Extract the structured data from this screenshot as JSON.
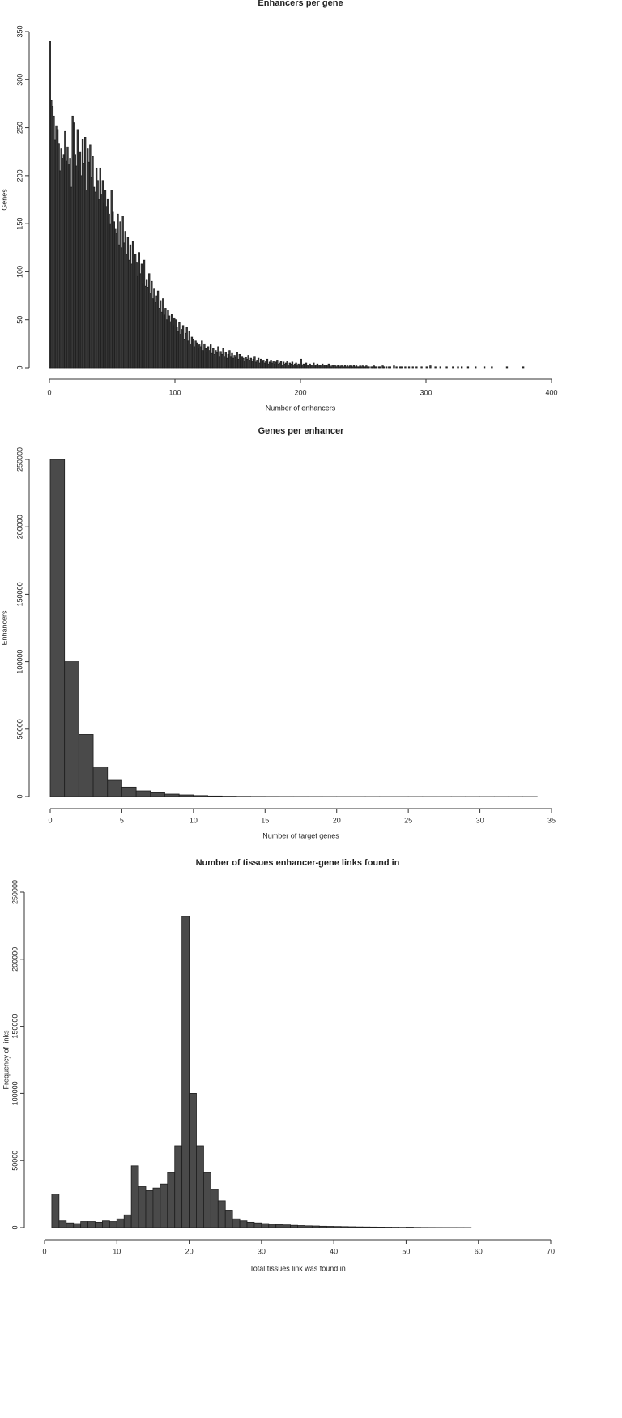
{
  "chart_data": [
    {
      "type": "histogram",
      "title": "Enhancers per gene",
      "x_label": "Number of enhancers",
      "y_label": "Genes",
      "color": "#444444",
      "bins": [
        0,
        1,
        2,
        3,
        4,
        5,
        6,
        7,
        8,
        9,
        10,
        11,
        12,
        13,
        14,
        15,
        16,
        17,
        18,
        19,
        20,
        21,
        22,
        23,
        24,
        25,
        26,
        27,
        28,
        29,
        30,
        31,
        32,
        33,
        34,
        35,
        36,
        37,
        38,
        39,
        40,
        41,
        42,
        43,
        44,
        45,
        46,
        47,
        48,
        49,
        50,
        51,
        52,
        53,
        54,
        55,
        56,
        57,
        58,
        59,
        60,
        61,
        62,
        63,
        64,
        65,
        66,
        67,
        68,
        69,
        70,
        71,
        72,
        73,
        74,
        75,
        76,
        77,
        78,
        79,
        80,
        81,
        82,
        83,
        84,
        85,
        86,
        87,
        88,
        89,
        90,
        91,
        92,
        93,
        94,
        95,
        96,
        97,
        98,
        99,
        100,
        101,
        102,
        103,
        104,
        105,
        106,
        107,
        108,
        109,
        110,
        111,
        112,
        113,
        114,
        115,
        116,
        117,
        118,
        119,
        120,
        121,
        122,
        123,
        124,
        125,
        126,
        127,
        128,
        129,
        130,
        131,
        132,
        133,
        134,
        135,
        136,
        137,
        138,
        139,
        140,
        141,
        142,
        143,
        144,
        145,
        146,
        147,
        148,
        149,
        150,
        151,
        152,
        153,
        154,
        155,
        156,
        157,
        158,
        159,
        160,
        161,
        162,
        163,
        164,
        165,
        166,
        167,
        168,
        169,
        170,
        171,
        172,
        173,
        174,
        175,
        176,
        177,
        178,
        179,
        180,
        181,
        182,
        183,
        184,
        185,
        186,
        187,
        188,
        189,
        190,
        191,
        192,
        193,
        194,
        195,
        196,
        197,
        198,
        199,
        200,
        201,
        202,
        203,
        204,
        205,
        206,
        207,
        208,
        209,
        210,
        211,
        212,
        213,
        214,
        215,
        216,
        217,
        218,
        219,
        220,
        221,
        222,
        223,
        224,
        225,
        226,
        227,
        228,
        229,
        230,
        231,
        232,
        233,
        234,
        235,
        236,
        237,
        238,
        239,
        240,
        241,
        242,
        243,
        244,
        245,
        246,
        247,
        248,
        249,
        250,
        251,
        252,
        253,
        254,
        255,
        256,
        257,
        258,
        259,
        260,
        261,
        262,
        263,
        264,
        265,
        266,
        267,
        268,
        269,
        270,
        271,
        272,
        273,
        274,
        275,
        276,
        277,
        278,
        279,
        280,
        281,
        282,
        283,
        284,
        285,
        286,
        287,
        288,
        289,
        290,
        291,
        292,
        293,
        294,
        295,
        296,
        297,
        298,
        299,
        300,
        301,
        302,
        303,
        304,
        305,
        306,
        307,
        308,
        309,
        310,
        311,
        312,
        313,
        314,
        315,
        316,
        317,
        318,
        319,
        320,
        321,
        322,
        323,
        324,
        325,
        326,
        327,
        328,
        329,
        330,
        331,
        332,
        333,
        334,
        335,
        336,
        337,
        338,
        339,
        340,
        341,
        342,
        343,
        344,
        345,
        346,
        347,
        348,
        349,
        350,
        351,
        352,
        353,
        354,
        355,
        356,
        357,
        358,
        359,
        360,
        361,
        362,
        363,
        364,
        365,
        366,
        367,
        368,
        369,
        370,
        371,
        372,
        373,
        374,
        375,
        376,
        377,
        378,
        379,
        380
      ],
      "values": [
        340,
        278,
        272,
        262,
        237,
        252,
        248,
        233,
        205,
        228,
        218,
        222,
        246,
        215,
        230,
        212,
        218,
        188,
        262,
        255,
        222,
        210,
        248,
        205,
        225,
        200,
        238,
        213,
        240,
        185,
        228,
        214,
        232,
        198,
        220,
        188,
        183,
        208,
        195,
        175,
        208,
        180,
        195,
        172,
        185,
        168,
        176,
        160,
        150,
        185,
        162,
        152,
        145,
        140,
        160,
        128,
        152,
        125,
        158,
        130,
        142,
        118,
        136,
        112,
        128,
        108,
        132,
        102,
        118,
        110,
        95,
        120,
        98,
        108,
        88,
        112,
        85,
        92,
        84,
        98,
        78,
        90,
        72,
        82,
        68,
        75,
        80,
        62,
        70,
        58,
        72,
        55,
        62,
        50,
        60,
        54,
        48,
        56,
        44,
        52,
        50,
        42,
        38,
        47,
        35,
        40,
        44,
        30,
        36,
        42,
        28,
        38,
        25,
        32,
        30,
        22,
        28,
        26,
        20,
        24,
        22,
        28,
        18,
        25,
        20,
        16,
        22,
        18,
        24,
        15,
        20,
        14,
        18,
        16,
        22,
        12,
        17,
        14,
        20,
        12,
        16,
        10,
        14,
        18,
        12,
        15,
        10,
        13,
        11,
        16,
        9,
        14,
        8,
        12,
        10,
        7,
        11,
        9,
        13,
        8,
        10,
        7,
        9,
        12,
        6,
        8,
        10,
        5,
        9,
        7,
        8,
        5,
        7,
        9,
        4,
        6,
        8,
        5,
        7,
        4,
        6,
        8,
        4,
        5,
        7,
        3,
        6,
        4,
        5,
        7,
        3,
        5,
        4,
        6,
        3,
        4,
        5,
        2,
        4,
        3,
        9,
        3,
        4,
        2,
        5,
        3,
        2,
        4,
        3,
        2,
        5,
        2,
        3,
        4,
        2,
        3,
        2,
        4,
        2,
        3,
        3,
        2,
        4,
        2,
        1,
        3,
        2,
        3,
        1,
        2,
        3,
        1,
        2,
        2,
        1,
        3,
        1,
        2,
        1,
        2,
        2,
        1,
        3,
        1,
        2,
        1,
        1,
        2,
        1,
        2,
        1,
        1,
        2,
        1,
        1,
        0,
        1,
        1,
        2,
        1,
        1,
        0,
        1,
        1,
        0,
        2,
        1,
        0,
        1,
        0,
        1,
        1,
        0,
        0,
        2,
        0,
        1,
        0,
        0,
        1,
        1,
        0,
        0,
        1,
        0,
        0,
        1,
        0,
        0,
        1,
        0,
        0,
        1,
        0,
        0,
        0,
        1,
        0,
        0,
        0,
        1,
        0,
        0,
        2,
        0,
        0,
        0,
        1,
        0,
        0,
        0,
        1,
        0,
        0,
        0,
        0,
        1,
        0,
        0,
        0,
        0,
        1,
        0,
        0,
        0,
        1,
        0,
        0,
        1,
        0,
        0,
        0,
        0,
        1,
        0,
        0,
        0,
        0,
        0,
        1,
        0,
        0,
        0,
        0,
        0,
        0,
        1,
        0,
        0,
        0,
        0,
        0,
        1,
        0,
        0,
        0,
        0,
        0,
        0,
        0,
        0,
        0,
        0,
        0,
        1,
        0,
        0,
        0,
        0,
        0,
        0,
        0,
        0,
        0,
        0,
        0,
        0,
        1,
        0,
        0
      ],
      "xlim": [
        0,
        400
      ],
      "xticks": [
        0,
        100,
        200,
        300,
        400
      ],
      "ylim": [
        0,
        350
      ],
      "yticks": [
        0,
        50,
        100,
        150,
        200,
        250,
        300,
        350
      ]
    },
    {
      "type": "histogram",
      "title": "Genes per enhancer",
      "x_label": "Number of target genes",
      "y_label": "Enhancers",
      "color": "#4a4a4a",
      "bins": [
        0,
        1,
        2,
        3,
        4,
        5,
        6,
        7,
        8,
        9,
        10,
        11,
        12,
        13,
        14,
        15,
        16,
        17,
        18,
        19,
        20,
        21,
        22,
        23,
        24,
        25,
        26,
        27,
        28,
        29,
        30,
        31,
        32,
        33,
        34
      ],
      "values": [
        250000,
        100000,
        46000,
        22000,
        12000,
        7000,
        4200,
        2800,
        1800,
        1200,
        700,
        400,
        250,
        150,
        100,
        70,
        50,
        40,
        30,
        20,
        15,
        10,
        8,
        6,
        5,
        4,
        3,
        2,
        2,
        1,
        1,
        1,
        1,
        1
      ],
      "xlim": [
        0,
        35
      ],
      "xticks": [
        0,
        5,
        10,
        15,
        20,
        25,
        30,
        35
      ],
      "ylim": [
        0,
        250000
      ],
      "yticks": [
        0,
        50000,
        100000,
        150000,
        200000,
        250000
      ]
    },
    {
      "type": "histogram",
      "title": "Number of tissues enhancer-gene links found in",
      "x_label": "Total tissues link was found in",
      "y_label": "Frequency of links",
      "color": "#4a4a4a",
      "bins": [
        1,
        2,
        3,
        4,
        5,
        6,
        7,
        8,
        9,
        10,
        11,
        12,
        13,
        14,
        15,
        16,
        17,
        18,
        19,
        20,
        21,
        22,
        23,
        24,
        25,
        26,
        27,
        28,
        29,
        30,
        31,
        32,
        33,
        34,
        35,
        36,
        37,
        38,
        39,
        40,
        41,
        42,
        43,
        44,
        45,
        46,
        47,
        48,
        49,
        50,
        51,
        52,
        53,
        54,
        55,
        56,
        57,
        58,
        59
      ],
      "values": [
        25000,
        5000,
        3500,
        3000,
        4500,
        4500,
        4000,
        5000,
        4500,
        6500,
        9500,
        46000,
        30500,
        27500,
        29500,
        32500,
        41000,
        61000,
        232000,
        100000,
        61000,
        41000,
        28500,
        20000,
        13000,
        6500,
        5000,
        4000,
        3500,
        3000,
        2500,
        2300,
        2000,
        1700,
        1500,
        1300,
        1200,
        1000,
        900,
        800,
        700,
        600,
        500,
        450,
        400,
        350,
        300,
        250,
        200,
        300,
        150,
        100,
        80,
        60,
        50,
        40,
        30,
        20
      ],
      "xlim": [
        0,
        70
      ],
      "xticks": [
        0,
        10,
        20,
        30,
        40,
        50,
        60,
        70
      ],
      "ylim": [
        0,
        250000
      ],
      "yticks": [
        0,
        50000,
        100000,
        150000,
        200000,
        250000
      ]
    }
  ]
}
